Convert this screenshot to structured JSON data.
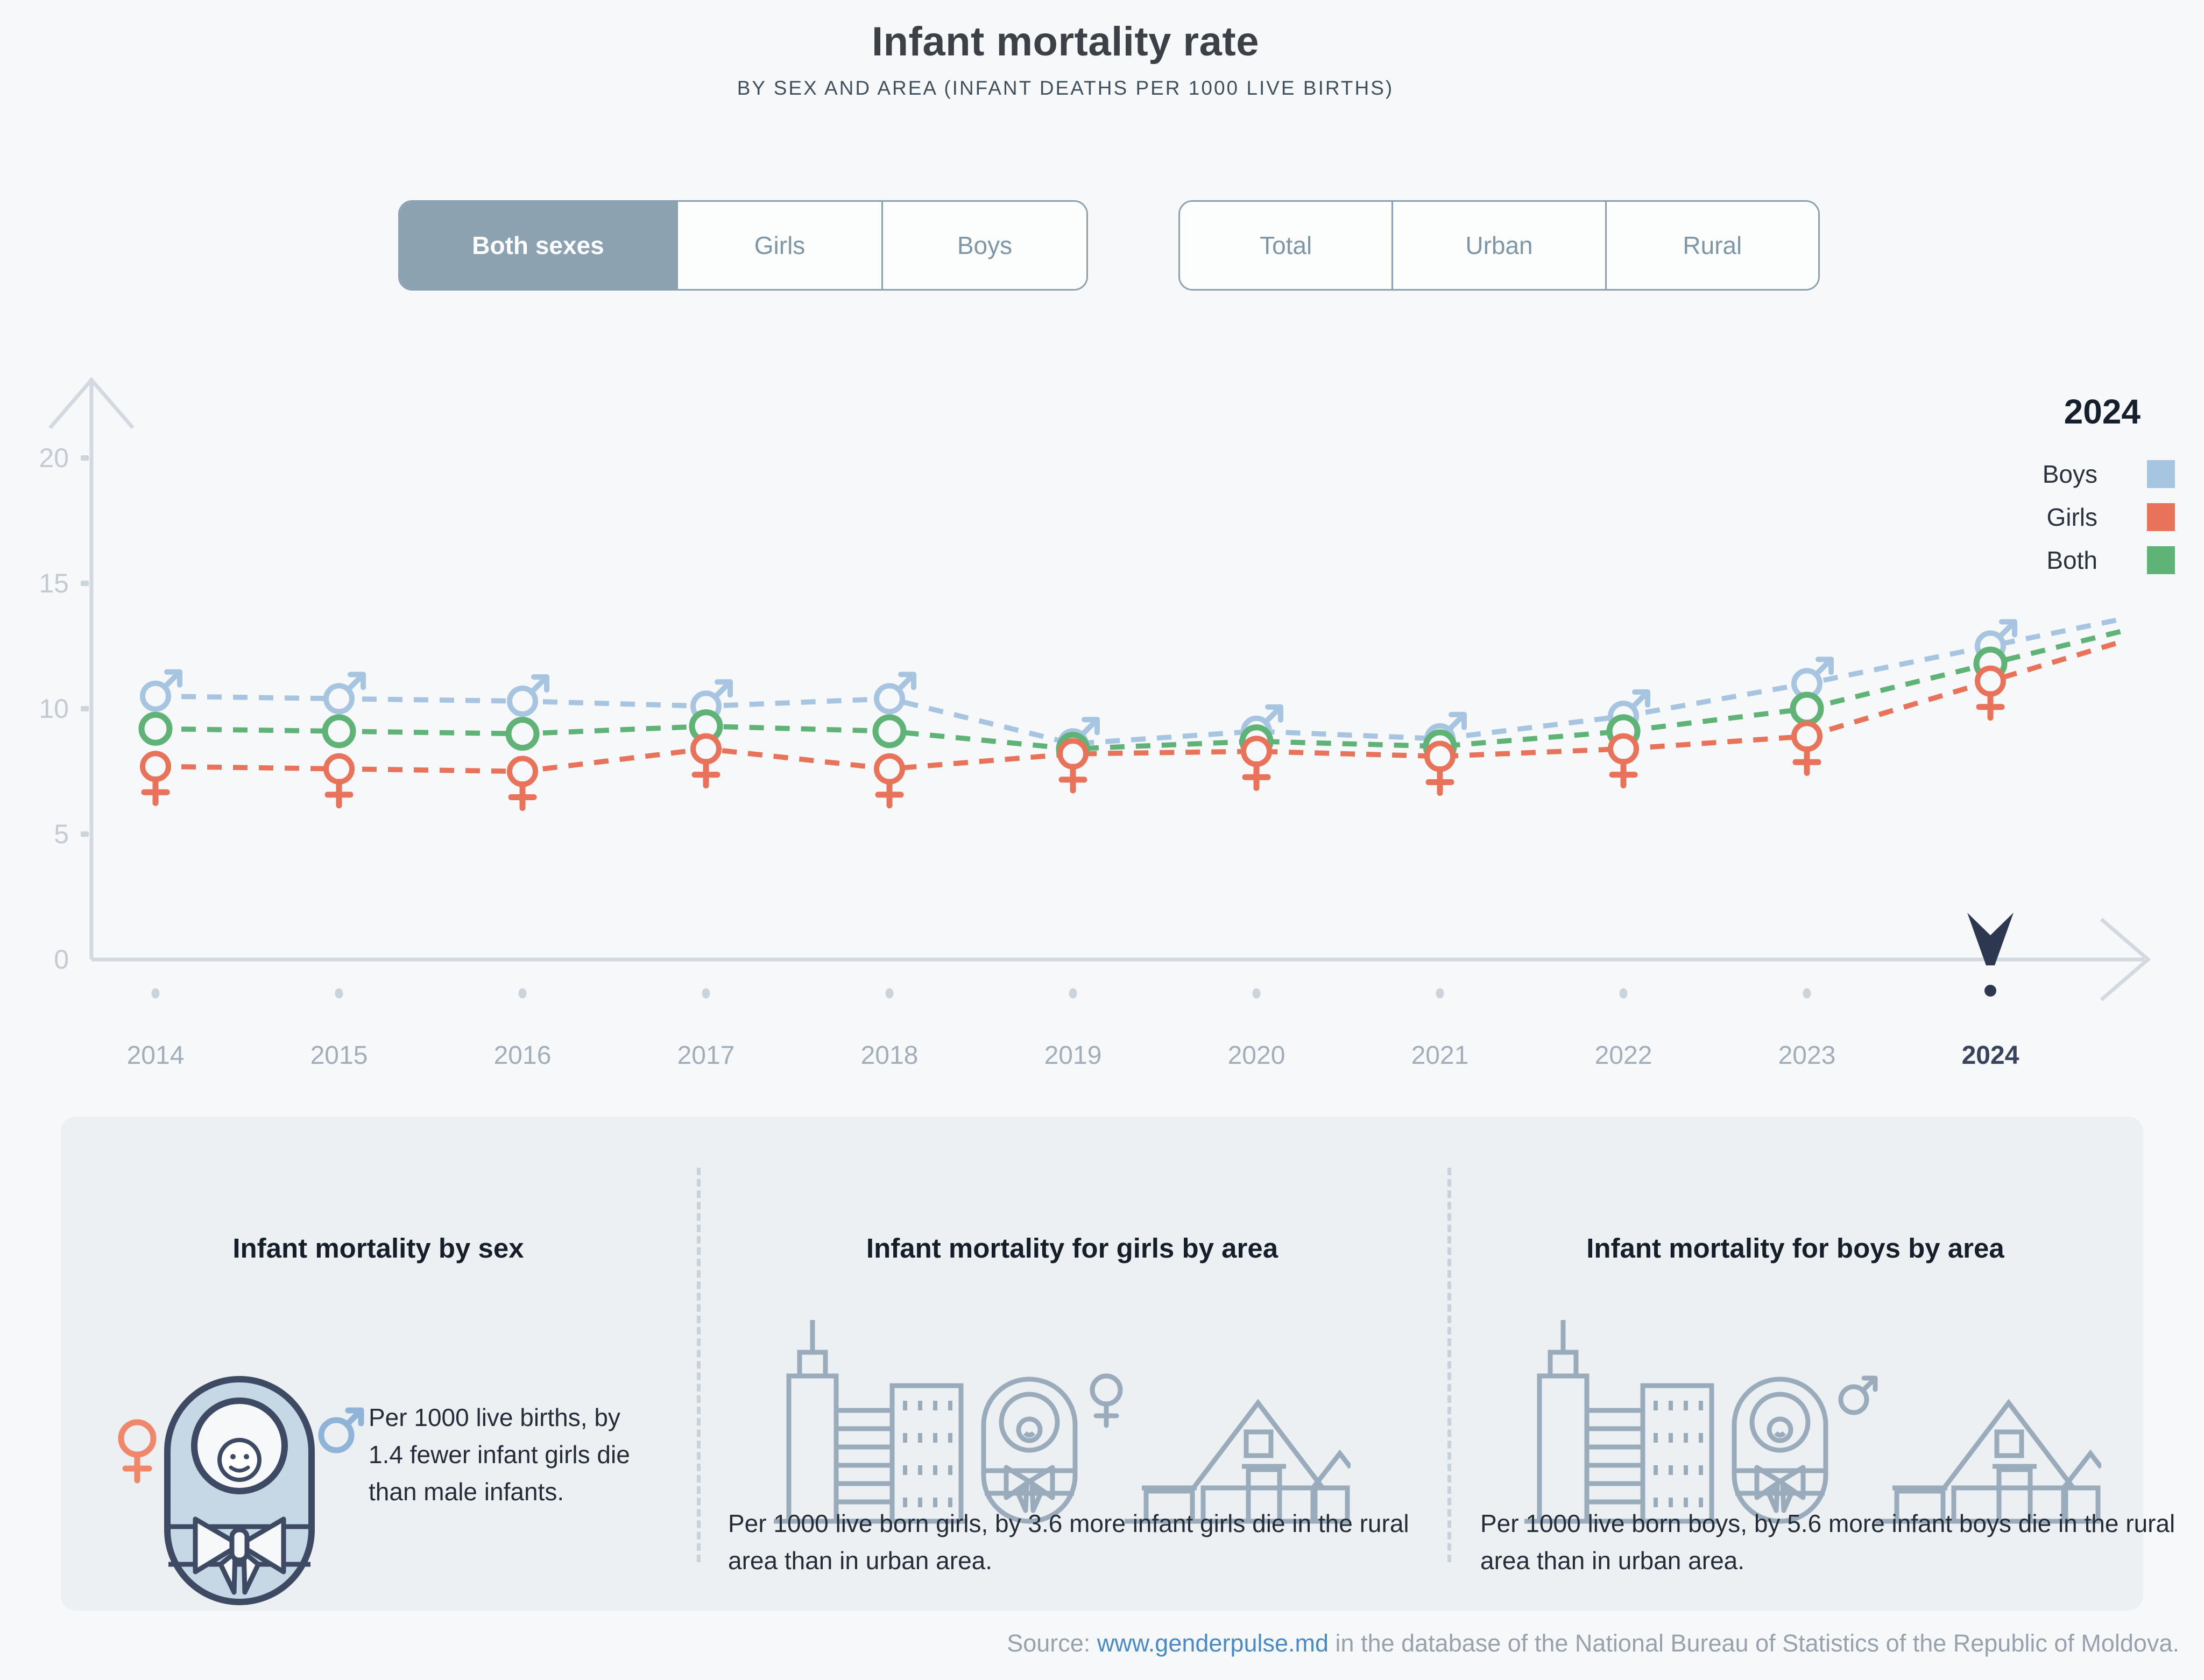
{
  "header": {
    "title": "Infant mortality rate",
    "subtitle": "BY SEX AND AREA (INFANT DEATHS PER 1000 LIVE BIRTHS)"
  },
  "filters": {
    "sex": {
      "options": [
        "Both sexes",
        "Girls",
        "Boys"
      ],
      "selected": "Both sexes"
    },
    "area": {
      "options": [
        "Total",
        "Urban",
        "Rural"
      ],
      "selected": null
    }
  },
  "legend": {
    "year": "2024",
    "items": [
      {
        "label": "Boys",
        "color": "#a7c4e0"
      },
      {
        "label": "Girls",
        "color": "#e8735a"
      },
      {
        "label": "Both",
        "color": "#60b377"
      }
    ]
  },
  "chart_data": {
    "type": "line",
    "title": "Infant mortality rate by sex, deaths per 1000 live births",
    "x": [
      2014,
      2015,
      2016,
      2017,
      2018,
      2019,
      2020,
      2021,
      2022,
      2023,
      2024
    ],
    "series": [
      {
        "name": "Boys",
        "marker": "male",
        "color": "#a7c4e0",
        "values": [
          10.5,
          10.4,
          10.3,
          10.1,
          10.4,
          8.6,
          9.1,
          8.8,
          9.7,
          11.0,
          12.5
        ]
      },
      {
        "name": "Both",
        "marker": "circle",
        "color": "#60b377",
        "values": [
          9.2,
          9.1,
          9.0,
          9.3,
          9.1,
          8.4,
          8.7,
          8.5,
          9.1,
          10.0,
          11.8
        ]
      },
      {
        "name": "Girls",
        "marker": "female",
        "color": "#e8735a",
        "values": [
          7.7,
          7.6,
          7.5,
          8.4,
          7.6,
          8.2,
          8.3,
          8.1,
          8.4,
          8.9,
          11.1
        ]
      }
    ],
    "ylim": [
      0,
      20
    ],
    "yticks": [
      0,
      5,
      10,
      15,
      20
    ],
    "grid": false,
    "legend_position": "top-right",
    "selected_year": 2024,
    "selected_year_marker_color": "#2d3850"
  },
  "cards": [
    {
      "title": "Infant mortality by sex",
      "text": "Per 1000 live births, by 1.4 fewer infant girls die than male infants."
    },
    {
      "title": "Infant mortality for girls by area",
      "text": "Per 1000 live born girls, by 3.6 more infant girls die in the rural area than in urban area."
    },
    {
      "title": "Infant mortality for boys by area",
      "text": "Per 1000 live born boys, by 5.6 more infant boys die in the rural area than in urban area."
    }
  ],
  "footer": {
    "source_prefix": "Source: ",
    "link_text": "www.genderpulse.md",
    "source_suffix": " in the database of the National Bureau of Statistics of the Republic of Moldova."
  },
  "colors": {
    "page_bg": "#f7f8f9",
    "axis": "#d3d9e0",
    "tick_text": "#c2cad4",
    "year_text": "#a2aeb9",
    "selected_year_text": "#38445c",
    "button_selected_bg": "#8ca2b1",
    "cards_bg": "#edf0f3"
  }
}
